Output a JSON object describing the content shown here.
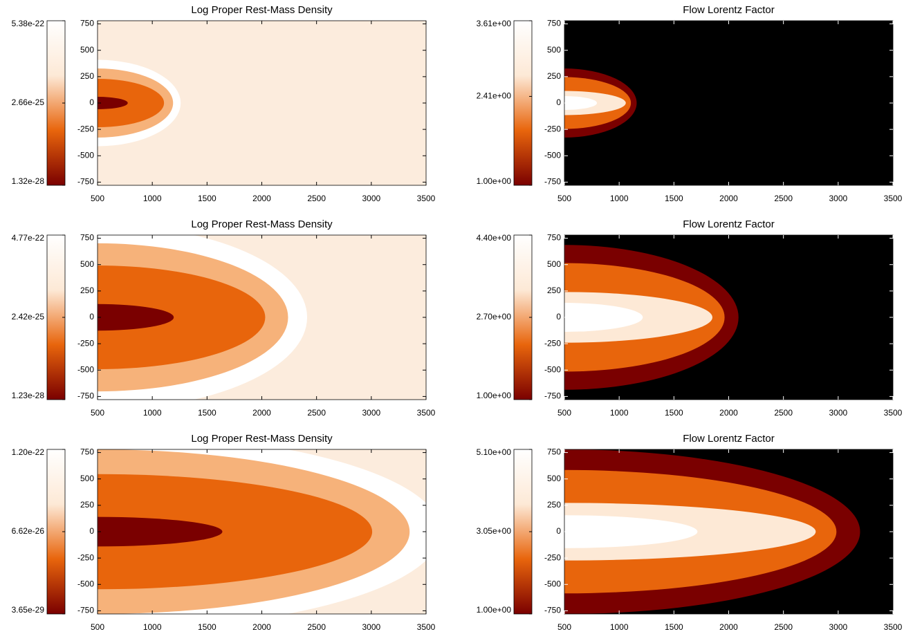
{
  "chart_data": [
    {
      "type": "heatmap",
      "title": "Log Proper Rest-Mass Density",
      "xlim": [
        500,
        3500
      ],
      "xticks": [
        500,
        1000,
        1500,
        2000,
        2500,
        3000,
        3500
      ],
      "ylim": [
        -780,
        780
      ],
      "yticks": [
        -750,
        -500,
        -250,
        0,
        250,
        500,
        750
      ],
      "background": "#fcecdd",
      "colormap": [
        "#7a0000",
        "#e8650c",
        "#fde9d6",
        "#ffffff"
      ],
      "colorbar": {
        "log": true,
        "clim": [
          1.32e-28,
          5.38e-22
        ],
        "ticks": [
          {
            "value": 1.32e-28,
            "label": "1.32e-28"
          },
          {
            "value": 2.66e-25,
            "label": "2.66e-25"
          },
          {
            "value": 5.38e-22,
            "label": "5.38e-22"
          }
        ]
      }
    },
    {
      "type": "heatmap",
      "title": "Flow Lorentz Factor",
      "xlim": [
        500,
        3500
      ],
      "xticks": [
        500,
        1000,
        1500,
        2000,
        2500,
        3000,
        3500
      ],
      "ylim": [
        -780,
        780
      ],
      "yticks": [
        -750,
        -500,
        -250,
        0,
        250,
        500,
        750
      ],
      "background": "#000000",
      "colormap": [
        "#7a0000",
        "#e8650c",
        "#fde9d6",
        "#ffffff"
      ],
      "colorbar": {
        "log": false,
        "clim": [
          1,
          3.61
        ],
        "ticks": [
          {
            "value": 1,
            "label": "1.00e+00"
          },
          {
            "value": 2.41,
            "label": "2.41e+00"
          },
          {
            "value": 3.61,
            "label": "3.61e+00"
          }
        ]
      }
    },
    {
      "type": "heatmap",
      "title": "Log Proper Rest-Mass Density",
      "xlim": [
        500,
        3500
      ],
      "xticks": [
        500,
        1000,
        1500,
        2000,
        2500,
        3000,
        3500
      ],
      "ylim": [
        -780,
        780
      ],
      "yticks": [
        -750,
        -500,
        -250,
        0,
        250,
        500,
        750
      ],
      "background": "#fcecdd",
      "colormap": [
        "#7a0000",
        "#e8650c",
        "#fde9d6",
        "#ffffff"
      ],
      "colorbar": {
        "log": true,
        "clim": [
          1.23e-28,
          4.77e-22
        ],
        "ticks": [
          {
            "value": 1.23e-28,
            "label": "1.23e-28"
          },
          {
            "value": 2.42e-25,
            "label": "2.42e-25"
          },
          {
            "value": 4.77e-22,
            "label": "4.77e-22"
          }
        ]
      }
    },
    {
      "type": "heatmap",
      "title": "Flow Lorentz Factor",
      "xlim": [
        500,
        3500
      ],
      "xticks": [
        500,
        1000,
        1500,
        2000,
        2500,
        3000,
        3500
      ],
      "ylim": [
        -780,
        780
      ],
      "yticks": [
        -750,
        -500,
        -250,
        0,
        250,
        500,
        750
      ],
      "background": "#000000",
      "colormap": [
        "#7a0000",
        "#e8650c",
        "#fde9d6",
        "#ffffff"
      ],
      "colorbar": {
        "log": false,
        "clim": [
          1,
          4.4
        ],
        "ticks": [
          {
            "value": 1,
            "label": "1.00e+00"
          },
          {
            "value": 2.7,
            "label": "2.70e+00"
          },
          {
            "value": 4.4,
            "label": "4.40e+00"
          }
        ]
      }
    },
    {
      "type": "heatmap",
      "title": "Log Proper Rest-Mass Density",
      "xlim": [
        500,
        3500
      ],
      "xticks": [
        500,
        1000,
        1500,
        2000,
        2500,
        3000,
        3500
      ],
      "ylim": [
        -780,
        780
      ],
      "yticks": [
        -750,
        -500,
        -250,
        0,
        250,
        500,
        750
      ],
      "background": "#fcecdd",
      "colormap": [
        "#7a0000",
        "#e8650c",
        "#fde9d6",
        "#ffffff"
      ],
      "colorbar": {
        "log": true,
        "clim": [
          3.65e-29,
          1.2e-22
        ],
        "ticks": [
          {
            "value": 3.65e-29,
            "label": "3.65e-29"
          },
          {
            "value": 6.62e-26,
            "label": "6.62e-26"
          },
          {
            "value": 1.2e-22,
            "label": "1.20e-22"
          }
        ]
      }
    },
    {
      "type": "heatmap",
      "title": "Flow Lorentz Factor",
      "xlim": [
        500,
        3500
      ],
      "xticks": [
        500,
        1000,
        1500,
        2000,
        2500,
        3000,
        3500
      ],
      "ylim": [
        -780,
        780
      ],
      "yticks": [
        -750,
        -500,
        -250,
        0,
        250,
        500,
        750
      ],
      "background": "#000000",
      "colormap": [
        "#7a0000",
        "#e8650c",
        "#fde9d6",
        "#ffffff"
      ],
      "colorbar": {
        "log": false,
        "clim": [
          1,
          5.1
        ],
        "ticks": [
          {
            "value": 1,
            "label": "1.00e+00"
          },
          {
            "value": 3.05,
            "label": "3.05e+00"
          },
          {
            "value": 5.1,
            "label": "5.10e+00"
          }
        ]
      }
    }
  ]
}
